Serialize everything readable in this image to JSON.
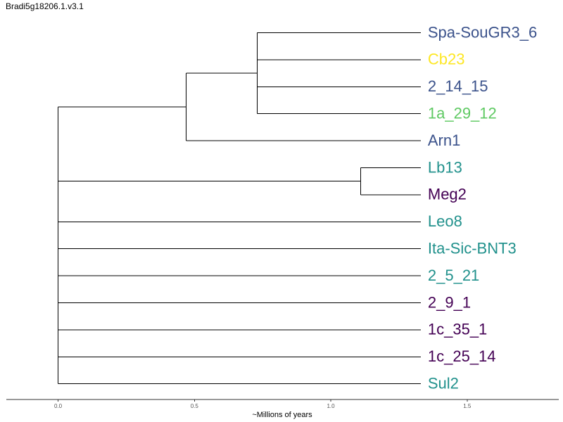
{
  "title": "Bradi5g18206.1.v3.1",
  "axis": {
    "label": "~Millions of years",
    "ticks": [
      "0.0",
      "0.5",
      "1.0",
      "1.5"
    ],
    "tick_values": [
      0.0,
      0.5,
      1.0,
      1.5
    ],
    "range": [
      -0.19,
      1.84
    ]
  },
  "colors": {
    "dark_blue": "#3b528b",
    "yellow": "#fde725",
    "green": "#5ec962",
    "teal": "#21918c",
    "purple": "#440154"
  },
  "leaves": [
    {
      "name": "Spa-SouGR3_6",
      "color": "#3b528b"
    },
    {
      "name": "Cb23",
      "color": "#fde725"
    },
    {
      "name": "2_14_15",
      "color": "#3b528b"
    },
    {
      "name": "1a_29_12",
      "color": "#5ec962"
    },
    {
      "name": "Arn1",
      "color": "#3b528b"
    },
    {
      "name": "Lb13",
      "color": "#21918c"
    },
    {
      "name": "Meg2",
      "color": "#440154"
    },
    {
      "name": "Leo8",
      "color": "#21918c"
    },
    {
      "name": "Ita-Sic-BNT3",
      "color": "#21918c"
    },
    {
      "name": "2_5_21",
      "color": "#21918c"
    },
    {
      "name": "2_9_1",
      "color": "#440154"
    },
    {
      "name": "1c_35_1",
      "color": "#440154"
    },
    {
      "name": "1c_25_14",
      "color": "#440154"
    },
    {
      "name": "Sul2",
      "color": "#21918c"
    }
  ],
  "tree": {
    "root_time": 0.0,
    "tip_time": 1.33,
    "nodes": [
      {
        "id": "A",
        "time": 0.73,
        "children": [
          0,
          1,
          2,
          3
        ]
      },
      {
        "id": "B",
        "time": 0.47,
        "children": [
          "A",
          4
        ]
      },
      {
        "id": "C",
        "time": 1.11,
        "children": [
          5,
          6
        ]
      },
      {
        "id": "root",
        "time": 0.0,
        "children": [
          "B",
          "C",
          7,
          8,
          9,
          10,
          11,
          12,
          13
        ]
      }
    ]
  }
}
